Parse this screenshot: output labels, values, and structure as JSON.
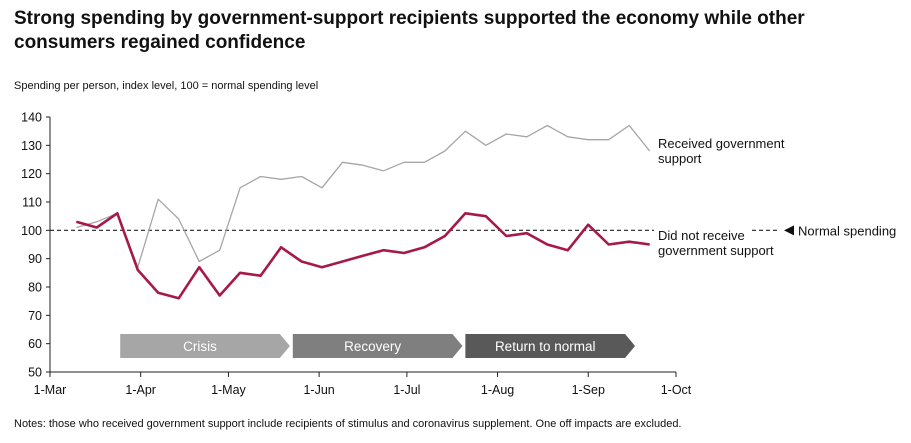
{
  "title": "Strong spending by government-support recipients supported the economy while other consumers regained confidence",
  "subtitle": "Spending per person, index level, 100 = normal spending level",
  "notes": "Notes: those who received government support include recipients of stimulus and coronavirus supplement. One off impacts are excluded.",
  "chart_data": {
    "type": "line",
    "ylim": [
      50,
      140
    ],
    "yticks": [
      50,
      60,
      70,
      80,
      90,
      100,
      110,
      120,
      130,
      140
    ],
    "x_dates": [
      "1-Mar",
      "1-Apr",
      "1-May",
      "1-Jun",
      "1-Jul",
      "1-Aug",
      "1-Sep",
      "1-Oct"
    ],
    "x_day_positions": [
      0,
      31,
      61,
      92,
      122,
      153,
      184,
      214
    ],
    "reference_line": {
      "value": 100,
      "label": "Normal spending"
    },
    "series": [
      {
        "name": "Received government support",
        "color": "#a6a6a6",
        "points": [
          [
            9,
            101
          ],
          [
            16,
            103
          ],
          [
            23,
            106
          ],
          [
            30,
            87
          ],
          [
            37,
            111
          ],
          [
            44,
            104
          ],
          [
            51,
            89
          ],
          [
            58,
            93
          ],
          [
            65,
            115
          ],
          [
            72,
            119
          ],
          [
            79,
            118
          ],
          [
            86,
            119
          ],
          [
            93,
            115
          ],
          [
            100,
            124
          ],
          [
            107,
            123
          ],
          [
            114,
            121
          ],
          [
            121,
            124
          ],
          [
            128,
            124
          ],
          [
            135,
            128
          ],
          [
            142,
            135
          ],
          [
            149,
            130
          ],
          [
            156,
            134
          ],
          [
            163,
            133
          ],
          [
            170,
            137
          ],
          [
            177,
            133
          ],
          [
            184,
            132
          ],
          [
            191,
            132
          ],
          [
            198,
            137
          ],
          [
            205,
            128
          ]
        ]
      },
      {
        "name": "Did not receive government support",
        "color": "#a6194b",
        "points": [
          [
            9,
            103
          ],
          [
            16,
            101
          ],
          [
            23,
            106
          ],
          [
            30,
            86
          ],
          [
            37,
            78
          ],
          [
            44,
            76
          ],
          [
            51,
            87
          ],
          [
            58,
            77
          ],
          [
            65,
            85
          ],
          [
            72,
            84
          ],
          [
            79,
            94
          ],
          [
            86,
            89
          ],
          [
            93,
            87
          ],
          [
            100,
            89
          ],
          [
            107,
            91
          ],
          [
            114,
            93
          ],
          [
            121,
            92
          ],
          [
            128,
            94
          ],
          [
            135,
            98
          ],
          [
            142,
            106
          ],
          [
            149,
            105
          ],
          [
            156,
            98
          ],
          [
            163,
            99
          ],
          [
            170,
            95
          ],
          [
            177,
            93
          ],
          [
            184,
            102
          ],
          [
            191,
            95
          ],
          [
            198,
            96
          ],
          [
            205,
            95
          ]
        ]
      }
    ],
    "phases": [
      {
        "label": "Crisis",
        "start_day": 24,
        "end_day": 82,
        "color": "#a6a6a6"
      },
      {
        "label": "Recovery",
        "start_day": 83,
        "end_day": 141,
        "color": "#7f7f7f"
      },
      {
        "label": "Return to normal",
        "start_day": 142,
        "end_day": 200,
        "color": "#595959"
      }
    ],
    "series_labels": [
      {
        "lines": [
          "Received government",
          "support"
        ]
      },
      {
        "lines": [
          "Did not receive",
          "government support"
        ]
      }
    ]
  }
}
